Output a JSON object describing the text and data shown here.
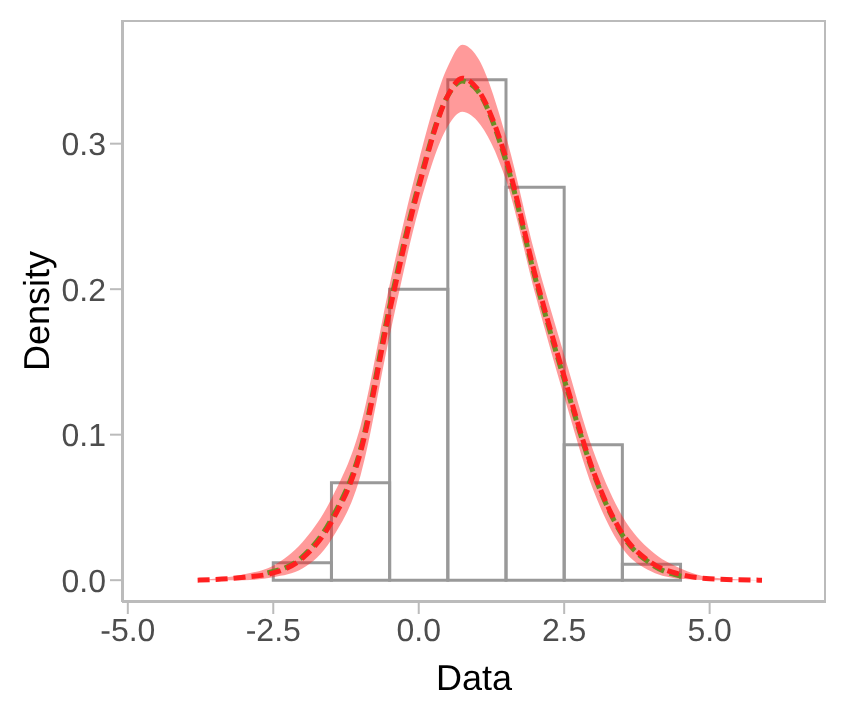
{
  "chart_data": {
    "type": "histogram",
    "xlabel": "Data",
    "ylabel": "Density",
    "bins": [
      -4.5,
      -3.5,
      -2.5,
      -1.5,
      -0.5,
      0.5,
      1.5,
      2.5,
      3.5,
      4.5,
      5.5,
      6.5
    ],
    "values": [
      0,
      0,
      0.012,
      0.067,
      0.2,
      0.344,
      0.27,
      0.093,
      0.011,
      0,
      0
    ],
    "color": "#999999",
    "series": [
      {
        "type": "line",
        "color": "#6b8e23",
        "x": [
          -2.6,
          -2,
          -1.5,
          -1,
          -0.5,
          0,
          0.5,
          0.75,
          1,
          1.5,
          2,
          2.5,
          3,
          3.5,
          4,
          4.6
        ],
        "values": [
          0.005,
          0.016,
          0.042,
          0.09,
          0.188,
          0.272,
          0.333,
          0.343,
          0.337,
          0.288,
          0.208,
          0.138,
          0.074,
          0.031,
          0.011,
          0.002
        ]
      },
      {
        "type": "line",
        "color": "#ff2020",
        "x": [
          -3.8,
          -3,
          -2.5,
          -2,
          -1.5,
          -1,
          -0.5,
          0,
          0.5,
          0.75,
          1,
          1.5,
          2,
          2.5,
          3,
          3.5,
          4,
          4.5,
          5,
          5.9
        ],
        "values": [
          0,
          0.002,
          0.005,
          0.015,
          0.04,
          0.088,
          0.185,
          0.27,
          0.333,
          0.345,
          0.338,
          0.29,
          0.21,
          0.14,
          0.075,
          0.032,
          0.012,
          0.004,
          0.001,
          0
        ],
        "lower": [
          0,
          0,
          0.002,
          0.008,
          0.028,
          0.072,
          0.168,
          0.255,
          0.312,
          0.322,
          0.316,
          0.275,
          0.197,
          0.126,
          0.062,
          0.022,
          0.006,
          0.001,
          0,
          0
        ],
        "upper": [
          0,
          0.004,
          0.01,
          0.026,
          0.056,
          0.106,
          0.203,
          0.288,
          0.353,
          0.368,
          0.36,
          0.305,
          0.224,
          0.155,
          0.089,
          0.044,
          0.02,
          0.008,
          0.002,
          0
        ]
      }
    ],
    "line_style": "dashed",
    "xlim": [
      -5.1,
      7.0
    ],
    "ylim": [
      -0.015,
      0.385
    ],
    "xticks": [
      {
        "value": -5,
        "label": "-5.0"
      },
      {
        "value": -2.5,
        "label": "-2.5"
      },
      {
        "value": 0,
        "label": "0.0"
      },
      {
        "value": 2.5,
        "label": "2.5"
      },
      {
        "value": 5,
        "label": "5.0"
      }
    ],
    "yticks": [
      {
        "value": 0,
        "label": "0.0"
      },
      {
        "value": 0.1,
        "label": "0.1"
      },
      {
        "value": 0.2,
        "label": "0.2"
      },
      {
        "value": 0.3,
        "label": "0.3"
      }
    ],
    "grid": false,
    "legend": false
  }
}
